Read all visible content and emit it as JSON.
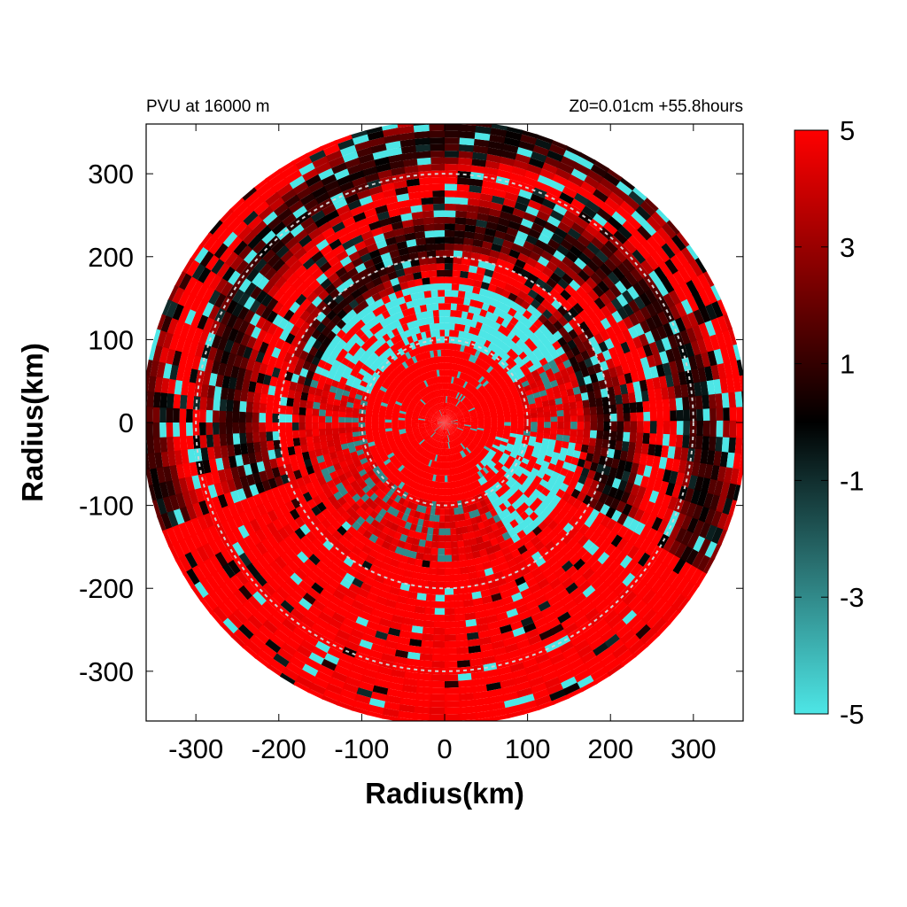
{
  "chart_data": {
    "type": "heatmap",
    "subtype": "polar field plot",
    "title_left": "PVU at 16000 m",
    "title_right": "Z0=0.01cm  +55.8hours",
    "xlabel": "Radius(km)",
    "ylabel": "Radius(km)",
    "xlim": [
      -360,
      360
    ],
    "ylim": [
      -360,
      360
    ],
    "x_ticks": [
      -300,
      -200,
      -100,
      0,
      100,
      200,
      300
    ],
    "y_ticks": [
      300,
      200,
      100,
      0,
      -100,
      -200,
      -300
    ],
    "domain_radius_km": 360,
    "reference_circles_km": [
      100,
      200,
      300
    ],
    "colorbar": {
      "min": -5,
      "max": 5,
      "ticks": [
        5,
        3,
        1,
        -1,
        -3,
        -5
      ],
      "colors": {
        "high": "#ff0000",
        "mid_high": "#800000",
        "zero": "#000000",
        "mid_low": "#2a7373",
        "low": "#4de6e6"
      }
    },
    "field_regions": [
      {
        "name": "eye core",
        "r_km": [
          0,
          100
        ],
        "dominant_value": 5
      },
      {
        "name": "inner ring",
        "r_km": [
          100,
          160
        ],
        "dominant_value": -5,
        "sector_deg": [
          40,
          150
        ]
      },
      {
        "name": "outer bands",
        "r_km": [
          160,
          360
        ],
        "dominant_value": 4
      },
      {
        "name": "southern sector",
        "r_km": [
          200,
          360
        ],
        "dominant_value": 5,
        "sector_deg": [
          200,
          330
        ]
      }
    ]
  }
}
